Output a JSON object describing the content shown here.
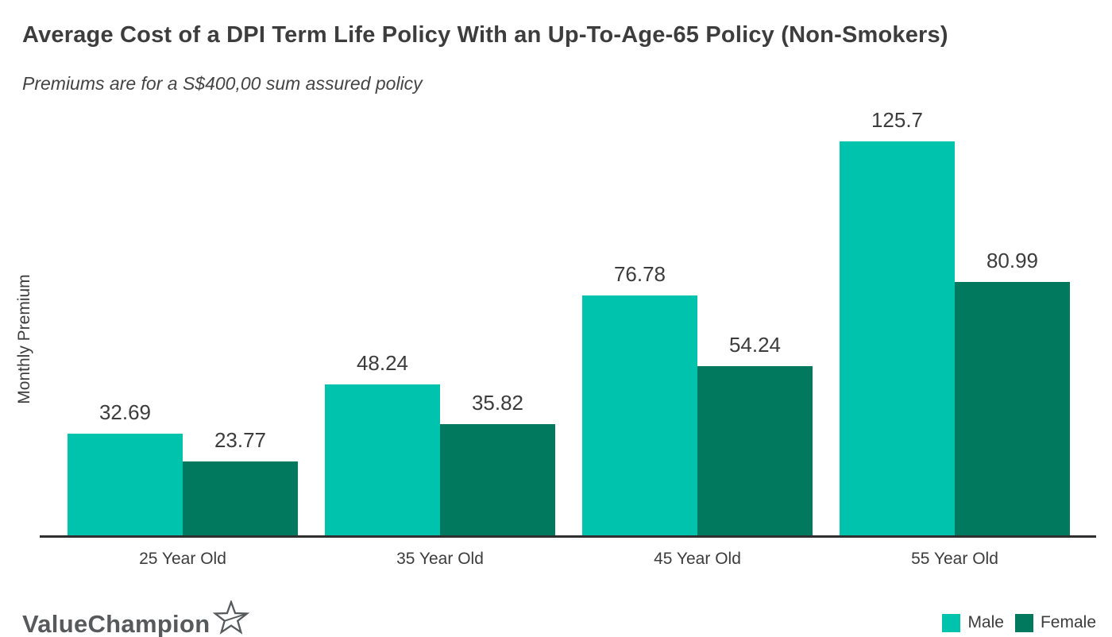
{
  "title": "Average Cost of a DPI Term Life Policy With an Up-To-Age-65 Policy (Non-Smokers)",
  "subtitle": "Premiums are for a S$400,00 sum assured policy",
  "y_axis_label": "Monthly Premium",
  "logo": {
    "text": "ValueChampion",
    "icon": "star-outline-icon",
    "color": "#58595b"
  },
  "colors": {
    "male": "#00C3AD",
    "female": "#00795F",
    "axis": "#2f2f2f",
    "text": "#3c3c3c"
  },
  "legend": {
    "position": "bottom-right",
    "items": [
      {
        "label": "Male",
        "color": "#00C3AD"
      },
      {
        "label": "Female",
        "color": "#00795F"
      }
    ]
  },
  "chart_data": {
    "type": "bar",
    "title": "Average Cost of a DPI Term Life Policy With an Up-To-Age-65 Policy (Non-Smokers)",
    "subtitle": "Premiums are for a S$400,00 sum assured policy",
    "categories": [
      "25 Year Old",
      "35 Year Old",
      "45 Year Old",
      "55 Year Old"
    ],
    "series": [
      {
        "name": "Male",
        "color": "#00C3AD",
        "values": [
          32.69,
          48.24,
          76.78,
          125.7
        ]
      },
      {
        "name": "Female",
        "color": "#00795F",
        "values": [
          23.77,
          35.82,
          54.24,
          80.99
        ]
      }
    ],
    "xlabel": "",
    "ylabel": "Monthly Premium",
    "ylim": [
      0,
      133
    ],
    "grid": false,
    "value_labels": true,
    "legend_position": "bottom-right"
  }
}
